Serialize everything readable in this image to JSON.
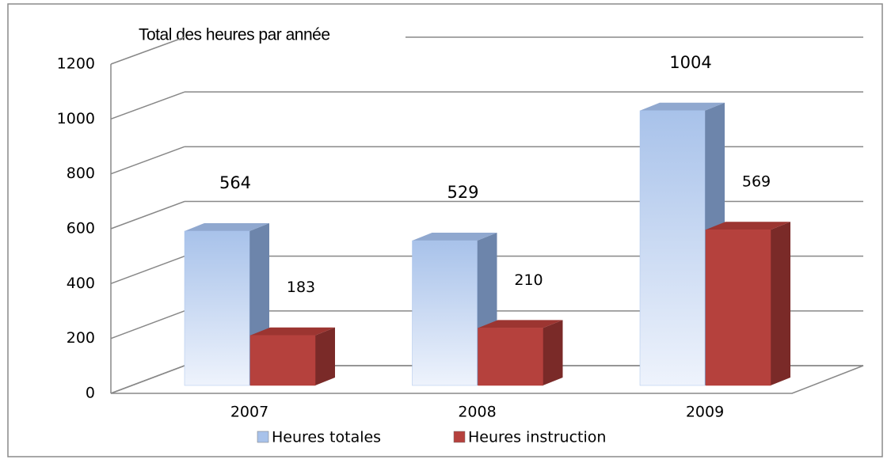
{
  "chart_data": {
    "type": "bar3d",
    "title": "Total des heures par année",
    "categories": [
      "2007",
      "2008",
      "2009"
    ],
    "series": [
      {
        "name": "Heures totales",
        "color": "#a8c2ea",
        "values": [
          564,
          529,
          1004
        ]
      },
      {
        "name": "Heures instruction",
        "color": "#b5413d",
        "values": [
          183,
          210,
          569
        ]
      }
    ],
    "ylim": [
      0,
      1200
    ],
    "yticks": [
      0,
      200,
      400,
      600,
      800,
      1000,
      1200
    ],
    "grid": true,
    "legend": "bottom"
  }
}
